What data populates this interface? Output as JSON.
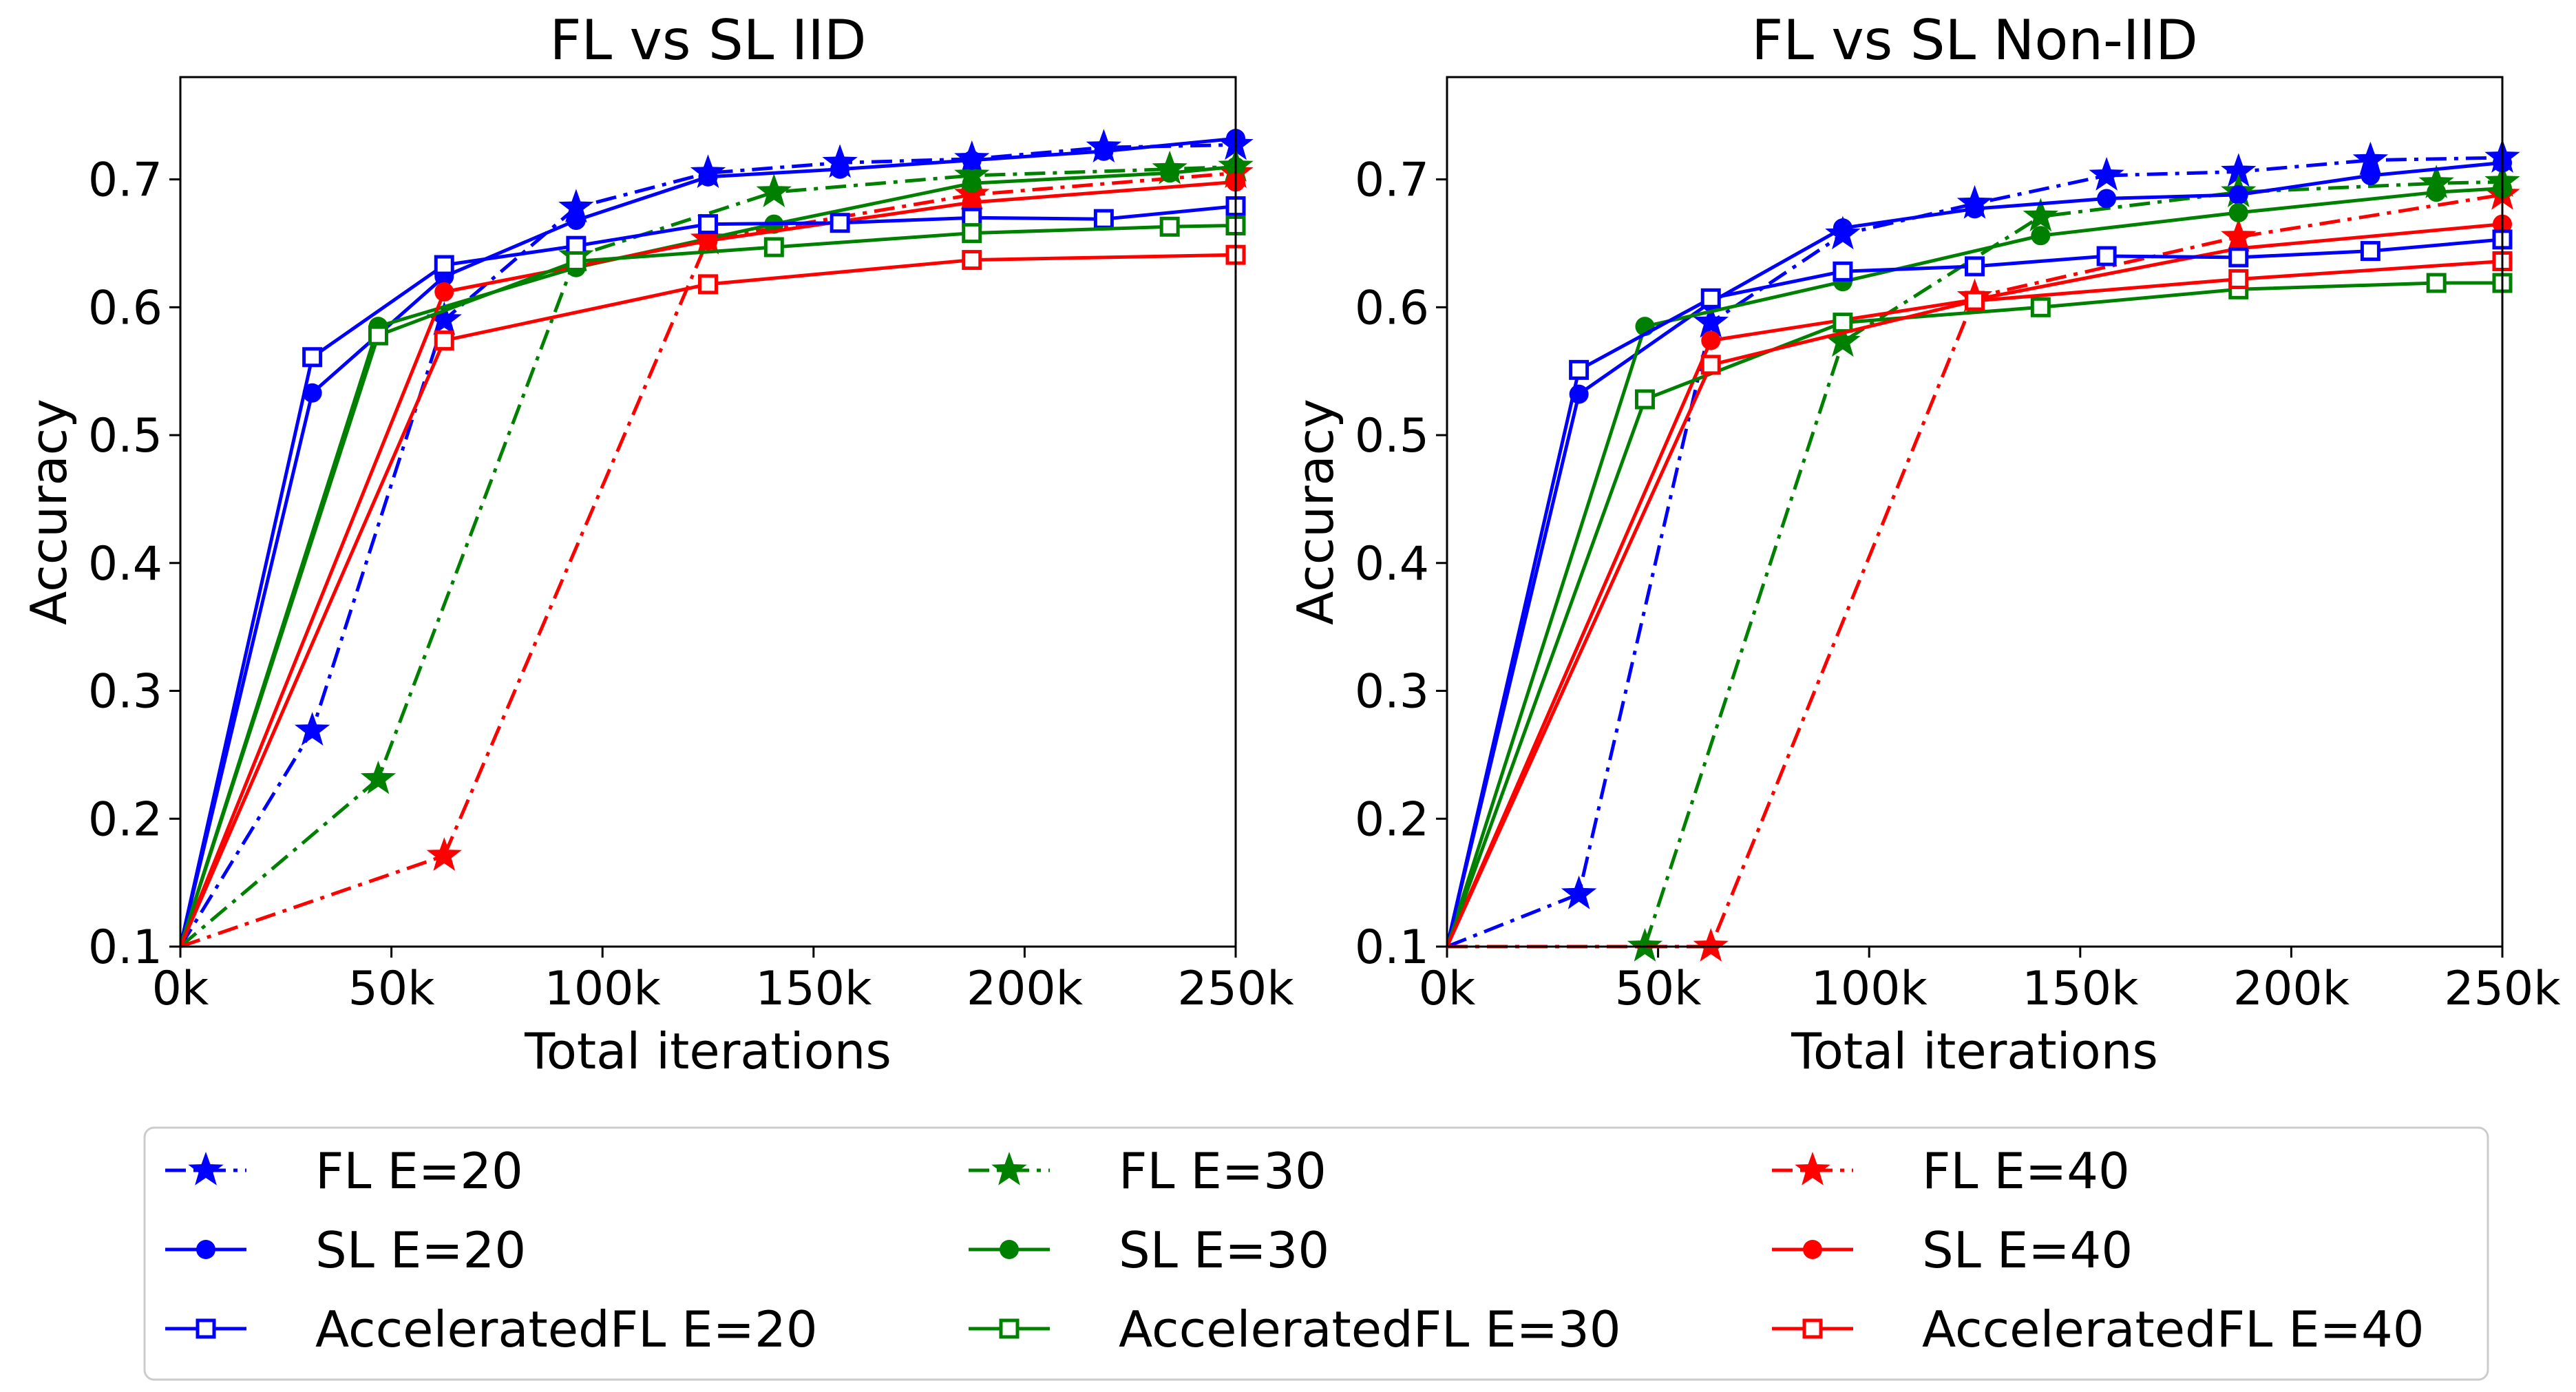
{
  "chart_data": [
    {
      "type": "line",
      "title": "FL vs SL IID",
      "xlabel": "Total iterations",
      "ylabel": "Accuracy",
      "xlim": [
        0,
        250
      ],
      "ylim": [
        0.1,
        0.78
      ],
      "x_ticks": [
        "0k",
        "50k",
        "100k",
        "150k",
        "200k",
        "250k"
      ],
      "y_ticks": [
        "0.1",
        "0.2",
        "0.3",
        "0.4",
        "0.5",
        "0.6",
        "0.7"
      ],
      "x_unit": "thousand iterations",
      "series": [
        {
          "name": "FL E=20",
          "color": "#0000ff",
          "style": "dashdot",
          "marker": "star",
          "points": [
            [
              0,
              0.1
            ],
            [
              31.25,
              0.269
            ],
            [
              62.5,
              0.59
            ],
            [
              93.75,
              0.678
            ],
            [
              125,
              0.705
            ],
            [
              156.25,
              0.713
            ],
            [
              187.5,
              0.716
            ],
            [
              218.75,
              0.725
            ],
            [
              250,
              0.727
            ]
          ]
        },
        {
          "name": "FL E=30",
          "color": "#008000",
          "style": "dashdot",
          "marker": "star",
          "points": [
            [
              0,
              0.1
            ],
            [
              46.875,
              0.231
            ],
            [
              93.75,
              0.64
            ],
            [
              140.625,
              0.69
            ],
            [
              187.5,
              0.703
            ],
            [
              234.375,
              0.708
            ],
            [
              250,
              0.71
            ]
          ]
        },
        {
          "name": "FL E=40",
          "color": "#ff0000",
          "style": "dashdot",
          "marker": "star",
          "points": [
            [
              0,
              0.1
            ],
            [
              62.5,
              0.171
            ],
            [
              125,
              0.653
            ],
            [
              187.5,
              0.688
            ],
            [
              250,
              0.705
            ]
          ]
        },
        {
          "name": "SL E=20",
          "color": "#0000ff",
          "style": "solid",
          "marker": "circle",
          "points": [
            [
              0,
              0.1
            ],
            [
              31.25,
              0.533
            ],
            [
              62.5,
              0.624
            ],
            [
              93.75,
              0.668
            ],
            [
              125,
              0.702
            ],
            [
              156.25,
              0.708
            ],
            [
              187.5,
              0.715
            ],
            [
              218.75,
              0.722
            ],
            [
              250,
              0.732
            ]
          ]
        },
        {
          "name": "SL E=30",
          "color": "#008000",
          "style": "solid",
          "marker": "circle",
          "points": [
            [
              0,
              0.1
            ],
            [
              46.875,
              0.585
            ],
            [
              93.75,
              0.631
            ],
            [
              140.625,
              0.665
            ],
            [
              187.5,
              0.697
            ],
            [
              234.375,
              0.705
            ],
            [
              250,
              0.71
            ]
          ]
        },
        {
          "name": "SL E=40",
          "color": "#ff0000",
          "style": "solid",
          "marker": "circle",
          "points": [
            [
              0,
              0.1
            ],
            [
              62.5,
              0.612
            ],
            [
              125,
              0.652
            ],
            [
              187.5,
              0.682
            ],
            [
              250,
              0.698
            ]
          ]
        },
        {
          "name": "AcceleratedFL E=20",
          "color": "#0000ff",
          "style": "solid",
          "marker": "square",
          "points": [
            [
              0,
              0.1
            ],
            [
              31.25,
              0.561
            ],
            [
              62.5,
              0.633
            ],
            [
              93.75,
              0.648
            ],
            [
              125,
              0.665
            ],
            [
              156.25,
              0.666
            ],
            [
              187.5,
              0.67
            ],
            [
              218.75,
              0.669
            ],
            [
              250,
              0.679
            ]
          ]
        },
        {
          "name": "AcceleratedFL E=30",
          "color": "#008000",
          "style": "solid",
          "marker": "square",
          "points": [
            [
              0,
              0.1
            ],
            [
              46.875,
              0.578
            ],
            [
              93.75,
              0.636
            ],
            [
              140.625,
              0.647
            ],
            [
              187.5,
              0.658
            ],
            [
              234.375,
              0.663
            ],
            [
              250,
              0.664
            ]
          ]
        },
        {
          "name": "AcceleratedFL E=40",
          "color": "#ff0000",
          "style": "solid",
          "marker": "square",
          "points": [
            [
              0,
              0.1
            ],
            [
              62.5,
              0.574
            ],
            [
              125,
              0.618
            ],
            [
              187.5,
              0.637
            ],
            [
              250,
              0.641
            ]
          ]
        }
      ]
    },
    {
      "type": "line",
      "title": "FL vs SL Non-IID",
      "xlabel": "Total iterations",
      "ylabel": "Accuracy",
      "xlim": [
        0,
        250
      ],
      "ylim": [
        0.1,
        0.78
      ],
      "x_ticks": [
        "0k",
        "50k",
        "100k",
        "150k",
        "200k",
        "250k"
      ],
      "y_ticks": [
        "0.1",
        "0.2",
        "0.3",
        "0.4",
        "0.5",
        "0.6",
        "0.7"
      ],
      "x_unit": "thousand iterations",
      "series": [
        {
          "name": "FL E=20",
          "color": "#0000ff",
          "style": "dashdot",
          "marker": "star",
          "points": [
            [
              0,
              0.1
            ],
            [
              31.25,
              0.141
            ],
            [
              62.5,
              0.588
            ],
            [
              93.75,
              0.657
            ],
            [
              125,
              0.681
            ],
            [
              156.25,
              0.703
            ],
            [
              187.5,
              0.706
            ],
            [
              218.75,
              0.715
            ],
            [
              250,
              0.717
            ]
          ]
        },
        {
          "name": "FL E=30",
          "color": "#008000",
          "style": "dashdot",
          "marker": "star",
          "points": [
            [
              0,
              0.1
            ],
            [
              46.875,
              0.1
            ],
            [
              93.75,
              0.573
            ],
            [
              140.625,
              0.671
            ],
            [
              187.5,
              0.69
            ],
            [
              234.375,
              0.697
            ],
            [
              250,
              0.698
            ]
          ]
        },
        {
          "name": "FL E=40",
          "color": "#ff0000",
          "style": "dashdot",
          "marker": "star",
          "points": [
            [
              0,
              0.1
            ],
            [
              62.5,
              0.1
            ],
            [
              125,
              0.608
            ],
            [
              187.5,
              0.655
            ],
            [
              250,
              0.688
            ]
          ]
        },
        {
          "name": "SL E=20",
          "color": "#0000ff",
          "style": "solid",
          "marker": "circle",
          "points": [
            [
              0,
              0.1
            ],
            [
              31.25,
              0.532
            ],
            [
              62.5,
              0.604
            ],
            [
              93.75,
              0.662
            ],
            [
              125,
              0.677
            ],
            [
              156.25,
              0.685
            ],
            [
              187.5,
              0.688
            ],
            [
              218.75,
              0.703
            ],
            [
              250,
              0.713
            ]
          ]
        },
        {
          "name": "SL E=30",
          "color": "#008000",
          "style": "solid",
          "marker": "circle",
          "points": [
            [
              0,
              0.1
            ],
            [
              46.875,
              0.585
            ],
            [
              93.75,
              0.62
            ],
            [
              140.625,
              0.656
            ],
            [
              187.5,
              0.674
            ],
            [
              234.375,
              0.69
            ],
            [
              250,
              0.693
            ]
          ]
        },
        {
          "name": "SL E=40",
          "color": "#ff0000",
          "style": "solid",
          "marker": "circle",
          "points": [
            [
              0,
              0.1
            ],
            [
              62.5,
              0.574
            ],
            [
              125,
              0.606
            ],
            [
              187.5,
              0.646
            ],
            [
              250,
              0.665
            ]
          ]
        },
        {
          "name": "AcceleratedFL E=20",
          "color": "#0000ff",
          "style": "solid",
          "marker": "square",
          "points": [
            [
              0,
              0.1
            ],
            [
              31.25,
              0.551
            ],
            [
              62.5,
              0.607
            ],
            [
              93.75,
              0.628
            ],
            [
              125,
              0.632
            ],
            [
              156.25,
              0.64
            ],
            [
              187.5,
              0.639
            ],
            [
              218.75,
              0.644
            ],
            [
              250,
              0.653
            ]
          ]
        },
        {
          "name": "AcceleratedFL E=30",
          "color": "#008000",
          "style": "solid",
          "marker": "square",
          "points": [
            [
              0,
              0.1
            ],
            [
              46.875,
              0.528
            ],
            [
              93.75,
              0.588
            ],
            [
              140.625,
              0.6
            ],
            [
              187.5,
              0.614
            ],
            [
              234.375,
              0.619
            ],
            [
              250,
              0.619
            ]
          ]
        },
        {
          "name": "AcceleratedFL E=40",
          "color": "#ff0000",
          "style": "solid",
          "marker": "square",
          "points": [
            [
              0,
              0.1
            ],
            [
              62.5,
              0.555
            ],
            [
              125,
              0.605
            ],
            [
              187.5,
              0.622
            ],
            [
              250,
              0.636
            ]
          ]
        }
      ]
    }
  ],
  "legend": {
    "placement": "bottom",
    "columns": 3
  }
}
